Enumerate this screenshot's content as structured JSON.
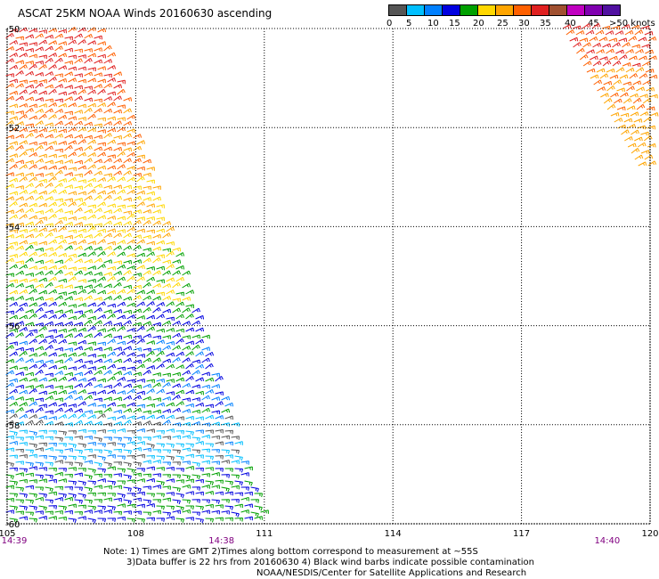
{
  "title": "ASCAT 25KM NOAA Winds 20160630 ascending",
  "scale": {
    "colors": [
      "#555555",
      "#00bfff",
      "#0080ff",
      "#0000e0",
      "#00a000",
      "#ffd700",
      "#ffa500",
      "#ff6000",
      "#e02020",
      "#a05030",
      "#c000c0",
      "#8000b0",
      "#5010a0"
    ],
    "labels": [
      "0",
      "5",
      "10",
      "15",
      "20",
      "25",
      "30",
      "35",
      "40",
      "45",
      ">50 knots"
    ]
  },
  "axes": {
    "lon_ticks": [
      "105",
      "108",
      "111",
      "114",
      "117",
      "120"
    ],
    "lat_ticks": [
      "-50",
      "-52",
      "-54",
      "-56",
      "-58",
      "-60"
    ],
    "lon_range": [
      105,
      120
    ],
    "lat_range": [
      -50,
      -60
    ],
    "grid": true
  },
  "time_labels": [
    {
      "text": "14:39",
      "lon": 105
    },
    {
      "text": "14:38",
      "lon": 110
    },
    {
      "text": "14:40",
      "lon": 119
    }
  ],
  "notes": {
    "line1": "Note: 1) Times are GMT 2)Times along bottom correspond to measurement at ~55S",
    "line2": "3)Data buffer is 22 hrs from 20160630 4) Black wind barbs indicate possible contamination",
    "line3": "NOAA/NESDIS/Center for Satellite Applications and Research"
  },
  "colors": {
    "grid": "#000000",
    "time_label": "#800080"
  }
}
